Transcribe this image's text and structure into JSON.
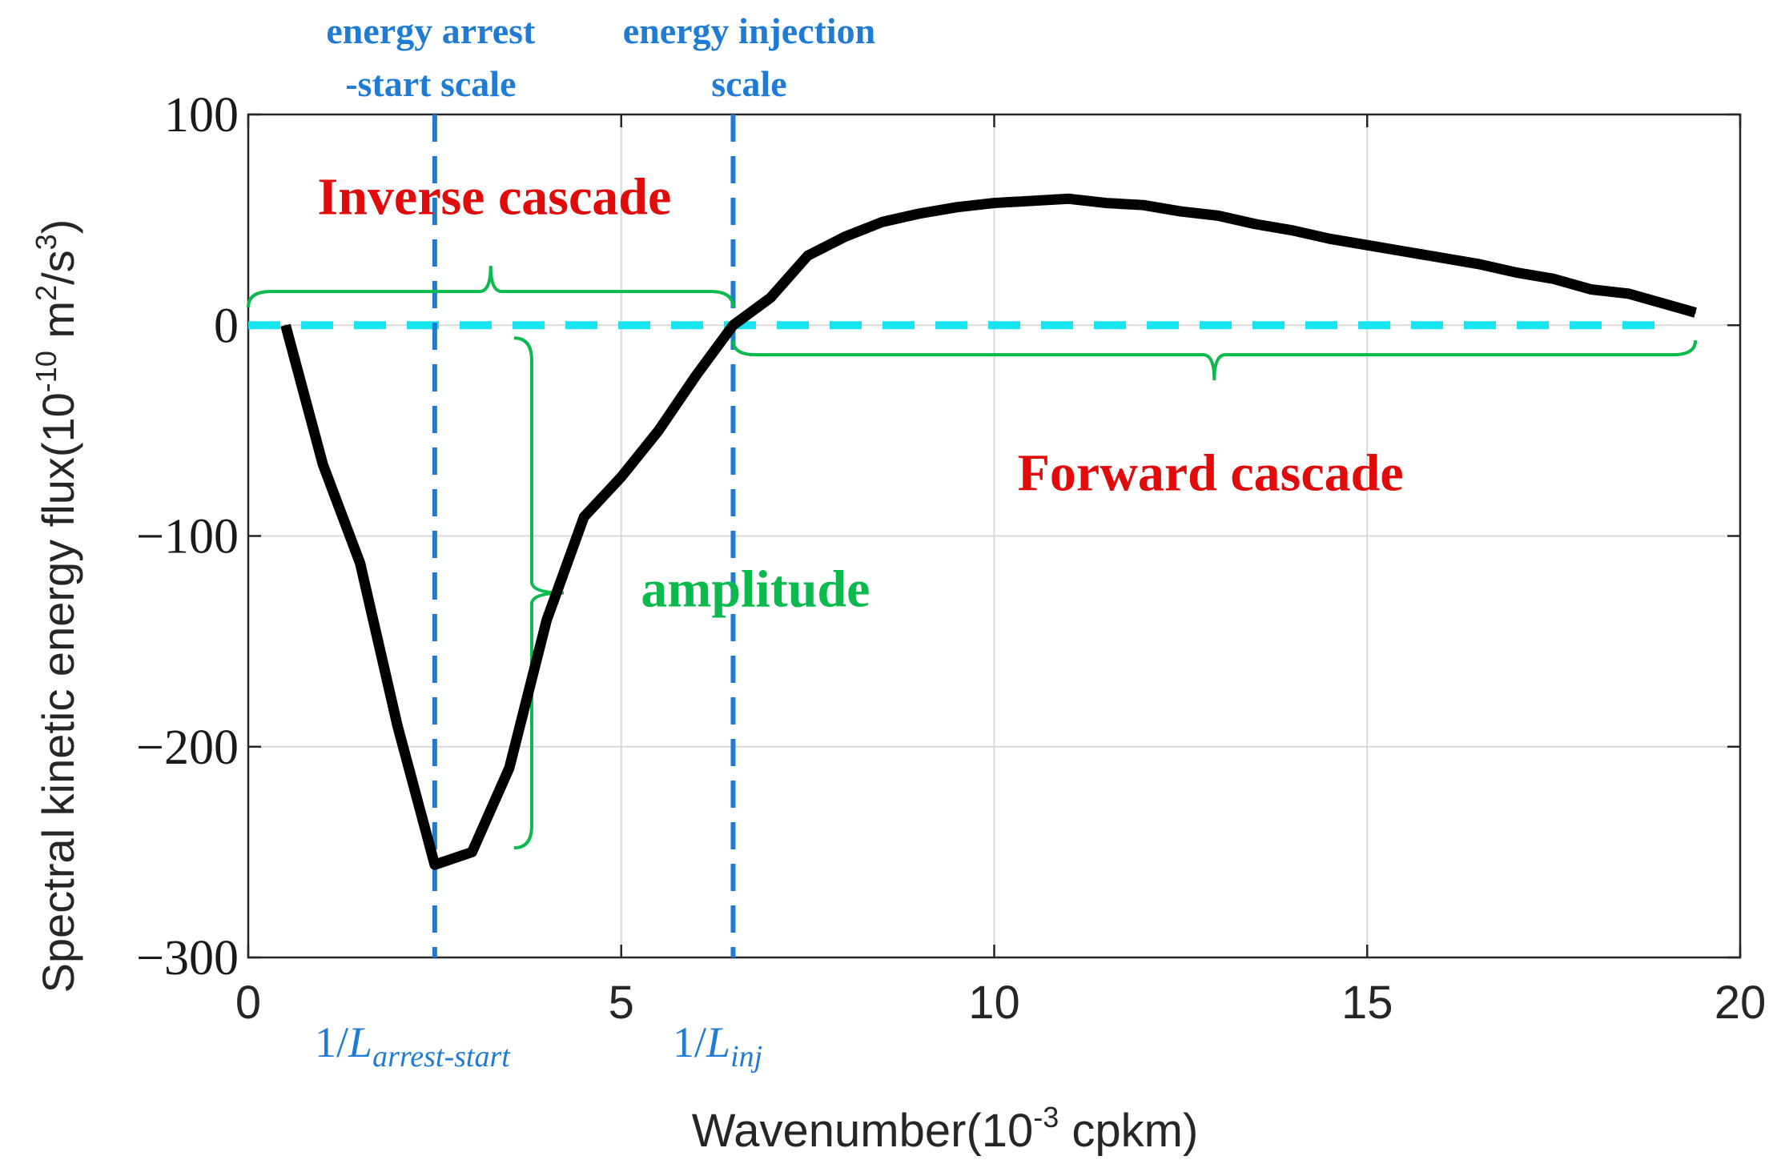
{
  "chart_data": {
    "type": "line",
    "xlabel": "Wavenumber(10",
    "xlabel_sup": "-3",
    "xlabel_tail": " cpkm)",
    "ylabel": "Spectral kinetic energy flux(10",
    "ylabel_sup1": "-10",
    "ylabel_mid": " m",
    "ylabel_sup2": "2",
    "ylabel_mid2": "/s",
    "ylabel_sup3": "3",
    "ylabel_tail": ")",
    "xlim": [
      0,
      20
    ],
    "ylim": [
      -300,
      100
    ],
    "xticks": [
      0,
      5,
      10,
      15,
      20
    ],
    "xtick_labels": [
      "0",
      "5",
      "10",
      "15",
      "20"
    ],
    "yticks": [
      100,
      0,
      -100,
      -200,
      -300
    ],
    "ytick_labels": [
      "100",
      "0",
      "−100",
      "−200",
      "−300"
    ],
    "grid": true,
    "series": [
      {
        "name": "Spectral kinetic energy flux",
        "color": "#000000",
        "x": [
          0.5,
          1.0,
          1.5,
          2.0,
          2.5,
          3.0,
          3.5,
          4.0,
          4.5,
          5.0,
          5.5,
          6.0,
          6.5,
          7.0,
          7.5,
          8.0,
          8.5,
          9.0,
          9.5,
          10.0,
          10.5,
          11.0,
          11.5,
          12.0,
          12.5,
          13.0,
          13.5,
          14.0,
          14.5,
          15.0,
          15.5,
          16.0,
          16.5,
          17.0,
          17.5,
          18.0,
          18.5,
          19.0,
          19.4
        ],
        "y": [
          0,
          -66,
          -113,
          -190,
          -256,
          -250,
          -210,
          -140,
          -91,
          -72,
          -50,
          -24,
          0,
          13,
          33,
          42,
          49,
          53,
          56,
          58,
          59,
          60,
          58,
          57,
          54,
          52,
          48,
          45,
          41,
          38,
          35,
          32,
          29,
          25,
          22,
          17,
          15,
          10,
          6
        ]
      }
    ],
    "zero_line": {
      "y": 0,
      "x_range": [
        0,
        19.0
      ],
      "color": "#19e5f0",
      "style": "dashed"
    },
    "vertical_lines": [
      {
        "x": 2.5,
        "color": "#1f7bd4",
        "style": "dashed",
        "label_top": [
          "energy arrest",
          "-start scale"
        ],
        "label_bottom": "1/L",
        "label_bottom_sub": "arrest-start"
      },
      {
        "x": 6.5,
        "color": "#1f7bd4",
        "style": "dashed",
        "label_top": [
          "energy injection",
          "scale"
        ],
        "label_bottom": "1/L",
        "label_bottom_sub": "inj"
      }
    ],
    "annotations": [
      {
        "text": "Inverse cascade",
        "color": "#e00b0b",
        "x": 3.3,
        "y": 61
      },
      {
        "text": "Forward cascade",
        "color": "#e00b0b",
        "x": 12.9,
        "y": -70
      },
      {
        "text": "amplitude",
        "color": "#0aba4d",
        "x": 6.8,
        "y": -125
      }
    ],
    "braces": [
      {
        "name": "inverse-cascade-brace",
        "orientation": "up",
        "x_range": [
          0,
          6.5
        ],
        "y": 16,
        "color": "#0aba4d"
      },
      {
        "name": "forward-cascade-brace",
        "orientation": "down",
        "x_range": [
          6.5,
          19.4
        ],
        "y": -14,
        "color": "#0aba4d"
      },
      {
        "name": "amplitude-brace",
        "orientation": "right",
        "y_range": [
          0,
          -248
        ],
        "x": 3.8,
        "color": "#0aba4d"
      }
    ]
  }
}
